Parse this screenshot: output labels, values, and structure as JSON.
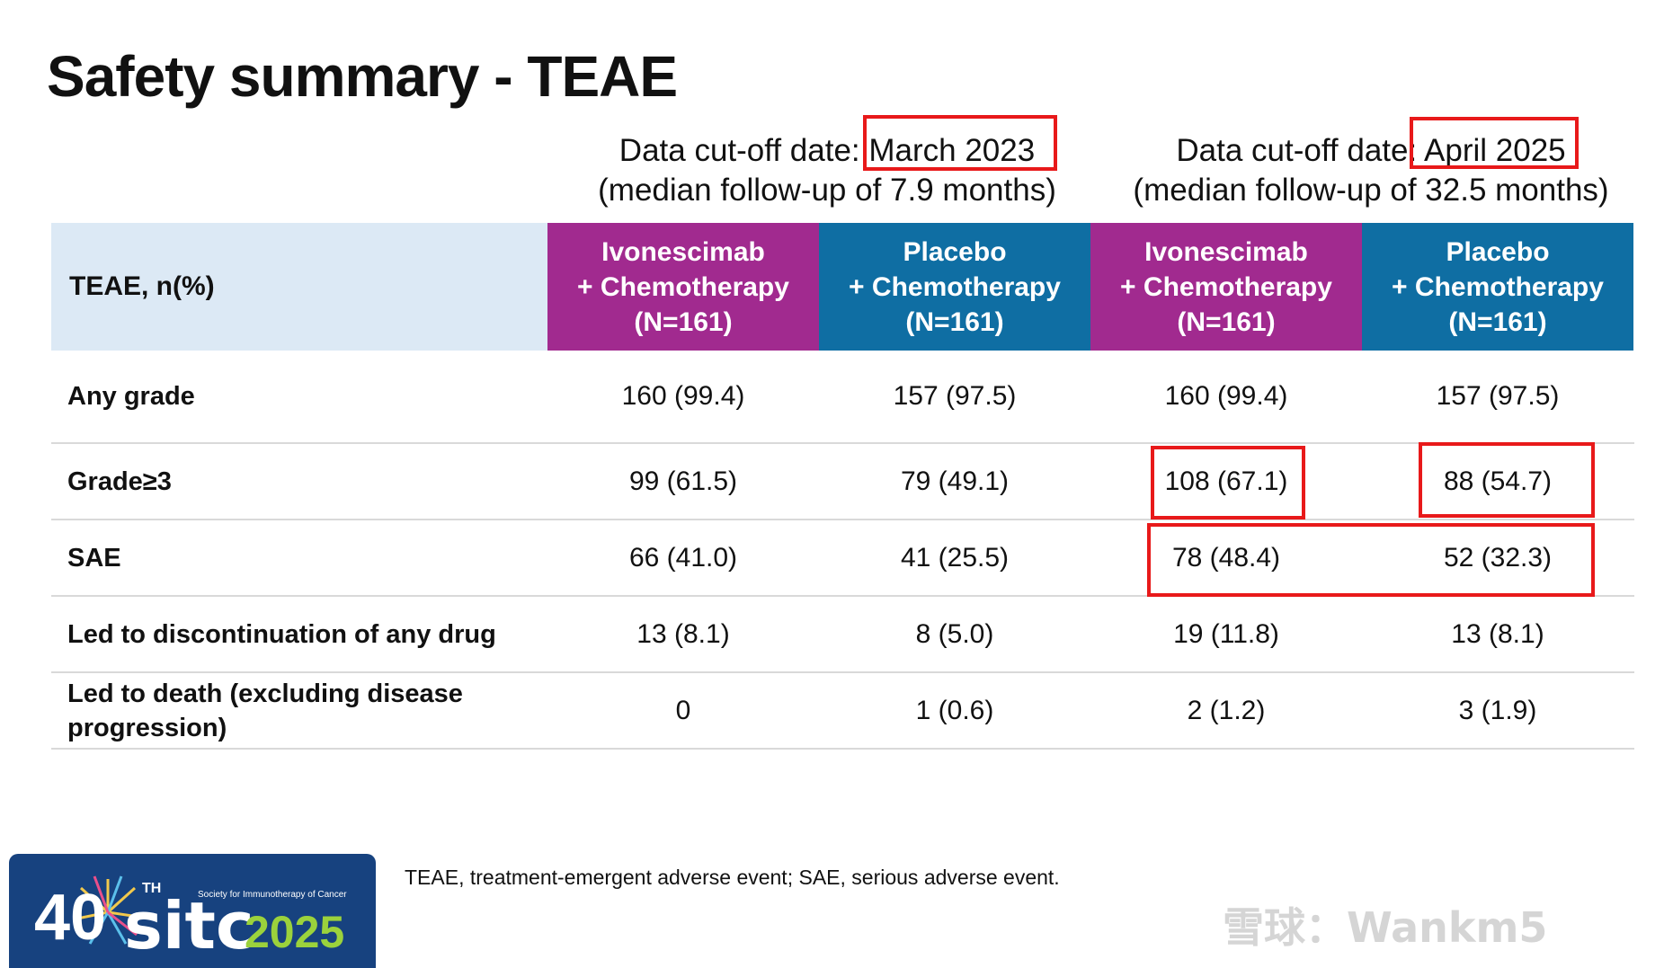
{
  "title": "Safety summary - TEAE",
  "cutoffs": [
    {
      "date_line": "Data cut-off date: March 2023",
      "followup_line": "(median follow-up of 7.9 months)"
    },
    {
      "date_line": "Data cut-off date: April 2025",
      "followup_line": "(median follow-up of 32.5 months)"
    }
  ],
  "table": {
    "header_label": "TEAE, n(%)",
    "columns": [
      {
        "line1": "Ivonescimab",
        "line2": "+ Chemotherapy",
        "line3": "(N=161)",
        "color": "#a12a8f"
      },
      {
        "line1": "Placebo",
        "line2": "+ Chemotherapy",
        "line3": "(N=161)",
        "color": "#0f6ea3"
      },
      {
        "line1": "Ivonescimab",
        "line2": "+ Chemotherapy",
        "line3": "(N=161)",
        "color": "#a12a8f"
      },
      {
        "line1": "Placebo",
        "line2": "+ Chemotherapy",
        "line3": "(N=161)",
        "color": "#0f6ea3"
      }
    ],
    "rows": [
      {
        "label": "Any grade",
        "values": [
          "160 (99.4)",
          "157 (97.5)",
          "160 (99.4)",
          "157 (97.5)"
        ]
      },
      {
        "label": "Grade≥3",
        "values": [
          "99 (61.5)",
          "79 (49.1)",
          "108 (67.1)",
          "88 (54.7)"
        ]
      },
      {
        "label": "SAE",
        "values": [
          "66 (41.0)",
          "41 (25.5)",
          "78 (48.4)",
          "52 (32.3)"
        ]
      },
      {
        "label": "Led to discontinuation of any drug",
        "values": [
          "13 (8.1)",
          "8 (5.0)",
          "19 (11.8)",
          "13 (8.1)"
        ]
      },
      {
        "label": "Led to death (excluding disease progression)",
        "values": [
          "0",
          "1 (0.6)",
          "2 (1.2)",
          "3 (1.9)"
        ]
      }
    ]
  },
  "footnote": "TEAE, treatment-emergent adverse event; SAE, serious adverse event.",
  "logo": {
    "number": "40",
    "ordinal": "TH",
    "brand": "sitc",
    "year": "2025",
    "society": "Society for Immunotherapy of Cancer"
  },
  "watermark": "雪球：Wankm5",
  "highlight_color": "#e8191a"
}
